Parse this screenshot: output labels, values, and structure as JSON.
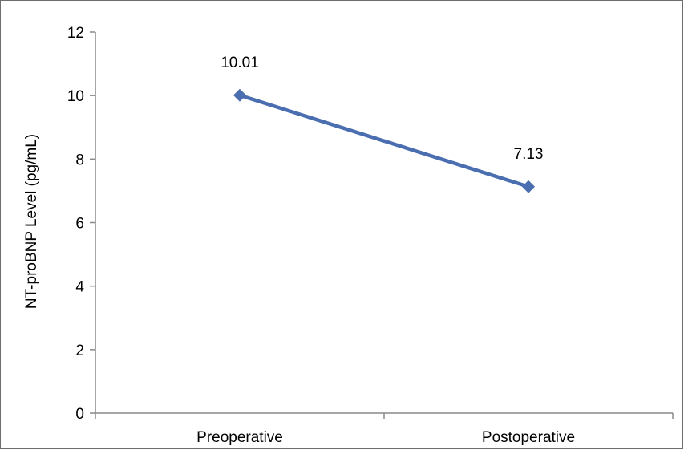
{
  "chart_data": {
    "type": "line",
    "categories": [
      "Preoperative",
      "Postoperative"
    ],
    "series": [
      {
        "values": [
          10.01,
          7.13
        ],
        "color": "#4a6eb0",
        "marker": "diamond"
      }
    ],
    "data_labels": [
      "10.01",
      "7.13"
    ],
    "ylabel": "NT-proBNP Level (pg/mL)",
    "xlabel": "",
    "ylim": [
      0,
      12
    ],
    "yticks": [
      0,
      2,
      4,
      6,
      8,
      10,
      12
    ],
    "grid": false,
    "legend": "none"
  }
}
